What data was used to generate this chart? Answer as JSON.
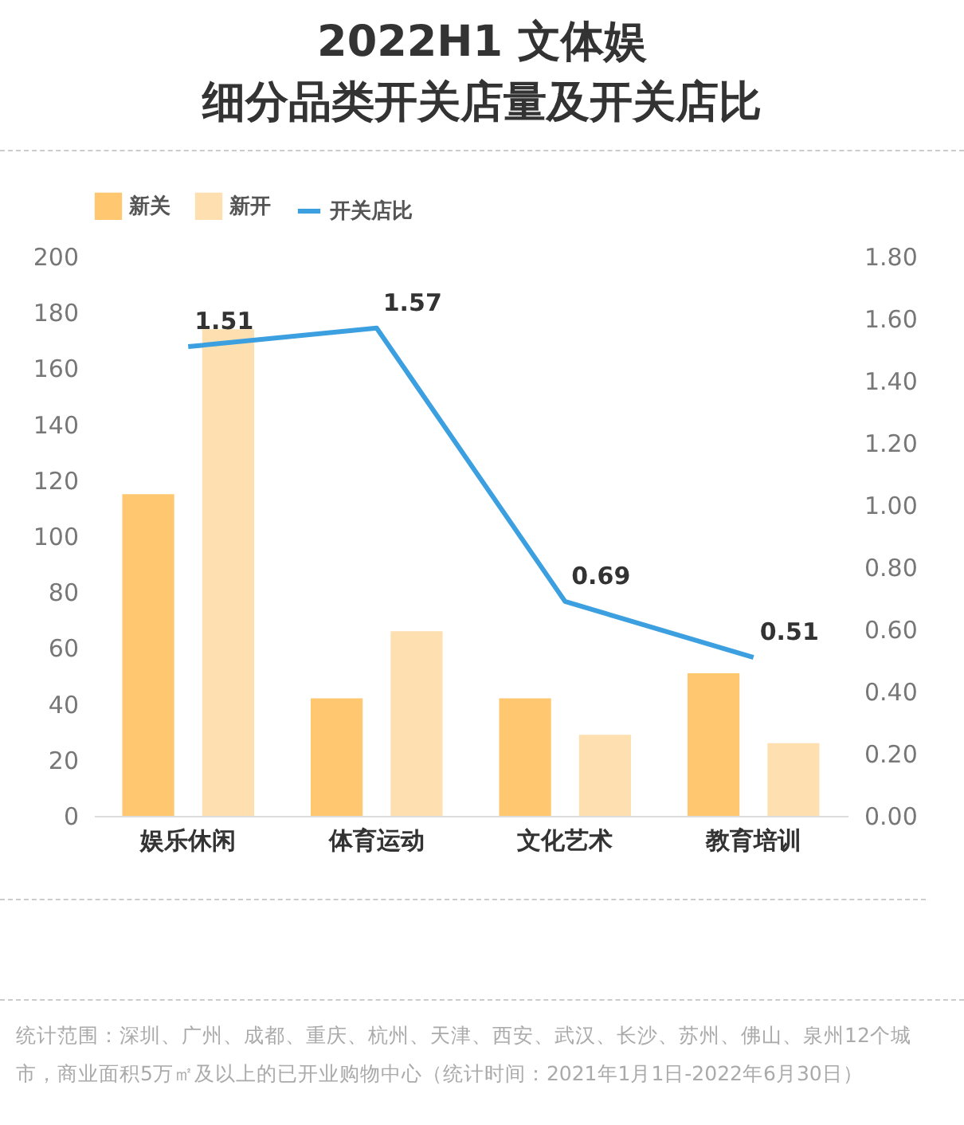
{
  "chart_data": {
    "type": "bar",
    "title": "2022H1 文体娱",
    "subtitle": "细分品类开关店量及开关店比",
    "categories": [
      "娱乐休闲",
      "体育运动",
      "文化艺术",
      "教育培训"
    ],
    "series": [
      {
        "name": "新关",
        "color": "#ffc870",
        "values": [
          115,
          42,
          42,
          51
        ]
      },
      {
        "name": "新开",
        "color": "#fee0b0",
        "values": [
          174,
          66,
          29,
          26
        ]
      },
      {
        "name": "开关店比",
        "type": "line",
        "axis": "y2",
        "color": "#3ca0e0",
        "values": [
          1.51,
          1.57,
          0.69,
          0.51
        ],
        "value_labels": [
          "1.51",
          "1.57",
          "0.69",
          "0.51"
        ]
      }
    ],
    "ylim": [
      0,
      200
    ],
    "yticks": [
      0,
      20,
      40,
      60,
      80,
      100,
      120,
      140,
      160,
      180,
      200
    ],
    "y2lim": [
      0,
      1.8
    ],
    "y2ticks": [
      {
        "value": 0,
        "label": "0.00"
      },
      {
        "value": 0.2,
        "label": "0.20"
      },
      {
        "value": 0.4,
        "label": "0.40"
      },
      {
        "value": 0.6,
        "label": "0.60"
      },
      {
        "value": 0.8,
        "label": "0.80"
      },
      {
        "value": 1,
        "label": "1.00"
      },
      {
        "value": 1.2,
        "label": "1.20"
      },
      {
        "value": 1.4,
        "label": "1.40"
      },
      {
        "value": 1.6,
        "label": "1.60"
      },
      {
        "value": 1.8,
        "label": "1.80"
      }
    ],
    "grid": false,
    "legend": "top",
    "marker": "none",
    "annotations": [
      "统计范围：深圳、广州、成都、重庆、杭州、天津、西安、武汉、长沙、苏州、佛山、泉州12个城市，商业面积5万㎡及以上的已开业购物中心（统计时间：2021年1月1日-2022年6月30日）"
    ]
  }
}
